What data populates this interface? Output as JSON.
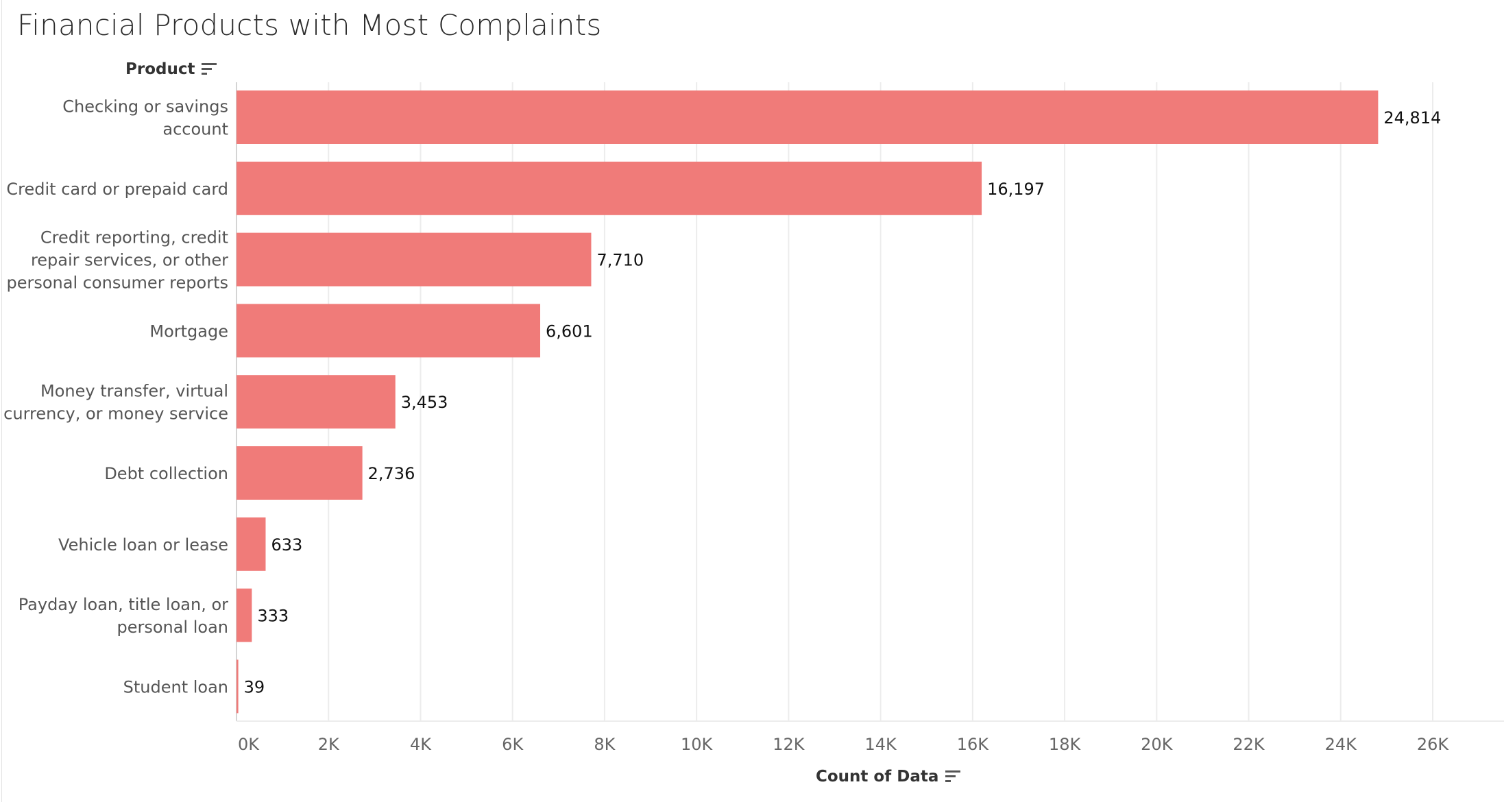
{
  "title": "Financial Products with Most Complaints",
  "y_header": "Product",
  "x_header": "Count of Data",
  "colors": {
    "bar": "#f07b79",
    "grid": "#ececec",
    "axis": "#d4d4d4"
  },
  "icons": {
    "sort": "sort-descending-icon"
  },
  "chart_data": {
    "type": "bar",
    "orientation": "horizontal",
    "title": "Financial Products with Most Complaints",
    "xlabel": "Count of Data",
    "ylabel": "Product",
    "categories": [
      "Checking or savings account",
      "Credit card or prepaid card",
      "Credit reporting, credit repair services, or other personal consumer reports",
      "Mortgage",
      "Money transfer, virtual currency, or money service",
      "Debt collection",
      "Vehicle loan or lease",
      "Payday loan, title loan, or personal loan",
      "Student loan"
    ],
    "category_lines": [
      [
        "Checking or savings",
        "account"
      ],
      [
        "Credit card or prepaid card"
      ],
      [
        "Credit reporting, credit",
        "repair services, or other",
        "personal consumer reports"
      ],
      [
        "Mortgage"
      ],
      [
        "Money transfer, virtual",
        "currency, or money service"
      ],
      [
        "Debt collection"
      ],
      [
        "Vehicle loan or lease"
      ],
      [
        "Payday loan, title loan, or",
        "personal loan"
      ],
      [
        "Student loan"
      ]
    ],
    "values": [
      24814,
      16197,
      7710,
      6601,
      3453,
      2736,
      633,
      333,
      39
    ],
    "value_labels": [
      "24,814",
      "16,197",
      "7,710",
      "6,601",
      "3,453",
      "2,736",
      "633",
      "333",
      "39"
    ],
    "xlim": [
      0,
      26000
    ],
    "xticks": [
      0,
      2000,
      4000,
      6000,
      8000,
      10000,
      12000,
      14000,
      16000,
      18000,
      20000,
      22000,
      24000,
      26000
    ],
    "xtick_labels": [
      "0K",
      "2K",
      "4K",
      "6K",
      "8K",
      "10K",
      "12K",
      "14K",
      "16K",
      "18K",
      "20K",
      "22K",
      "24K",
      "26K"
    ],
    "grid": true,
    "legend": "none"
  }
}
